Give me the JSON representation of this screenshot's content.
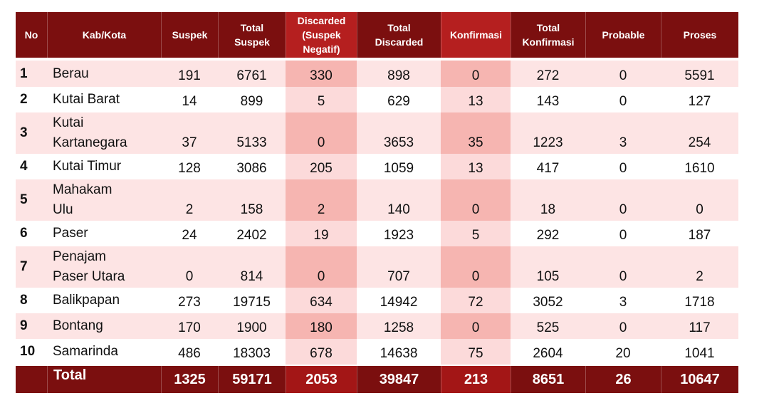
{
  "headers": [
    "No",
    "Kab/Kota",
    "Suspek",
    "Total\nSuspek",
    "Discarded\n(Suspek\nNegatif)",
    "Total\nDiscarded",
    "Konfirmasi",
    "Total\nKonfirmasi",
    "Probable",
    "Proses"
  ],
  "rows": [
    {
      "no": "1",
      "name": "Berau",
      "values": [
        "191",
        "6761",
        "330",
        "898",
        "0",
        "272",
        "0",
        "5591"
      ]
    },
    {
      "no": "2",
      "name": "Kutai Barat",
      "values": [
        "14",
        "899",
        "5",
        "629",
        "13",
        "143",
        "0",
        "127"
      ]
    },
    {
      "no": "3",
      "name": "Kutai\nKartanegara",
      "values": [
        "37",
        "5133",
        "0",
        "3653",
        "35",
        "1223",
        "3",
        "254"
      ]
    },
    {
      "no": "4",
      "name": "Kutai Timur",
      "values": [
        "128",
        "3086",
        "205",
        "1059",
        "13",
        "417",
        "0",
        "1610"
      ]
    },
    {
      "no": "5",
      "name": "Mahakam\nUlu",
      "values": [
        "2",
        "158",
        "2",
        "140",
        "0",
        "18",
        "0",
        "0"
      ]
    },
    {
      "no": "6",
      "name": "Paser",
      "values": [
        "24",
        "2402",
        "19",
        "1923",
        "5",
        "292",
        "0",
        "187"
      ]
    },
    {
      "no": "7",
      "name": "Penajam\nPaser Utara",
      "values": [
        "0",
        "814",
        "0",
        "707",
        "0",
        "105",
        "0",
        "2"
      ]
    },
    {
      "no": "8",
      "name": "Balikpapan",
      "values": [
        "273",
        "19715",
        "634",
        "14942",
        "72",
        "3052",
        "3",
        "1718"
      ]
    },
    {
      "no": "9",
      "name": "Bontang",
      "values": [
        "170",
        "1900",
        "180",
        "1258",
        "0",
        "525",
        "0",
        "117"
      ]
    },
    {
      "no": "10",
      "name": "Samarinda",
      "values": [
        "486",
        "18303",
        "678",
        "14638",
        "75",
        "2604",
        "20",
        "1041"
      ]
    }
  ],
  "total": {
    "label": "Total",
    "values": [
      "1325",
      "59171",
      "2053",
      "39847",
      "213",
      "8651",
      "26",
      "10647"
    ]
  }
}
